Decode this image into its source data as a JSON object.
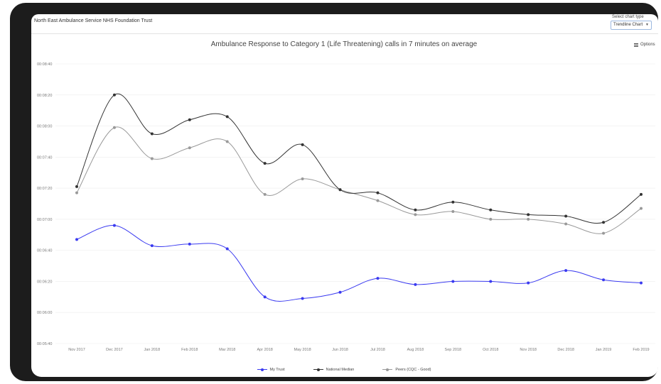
{
  "header": {
    "trust_name": "North East Ambulance Service NHS Foundation Trust",
    "chart_type_label": "Select chart type",
    "chart_type_selected": "Trendline Chart",
    "options_label": "Options"
  },
  "colors": {
    "my_trust": "#3a3af0",
    "national_median": "#333333",
    "peers": "#999999",
    "grid": "#eeeeee"
  },
  "chart_data": {
    "type": "line",
    "title": "Ambulance Response to Category 1 (Life Threatening) calls in 7 minutes on average",
    "ylabel": "",
    "xlabel": "",
    "categories": [
      "Nov 2017",
      "Dec 2017",
      "Jan 2018",
      "Feb 2018",
      "Mar 2018",
      "Apr 2018",
      "May 2018",
      "Jun 2018",
      "Jul 2018",
      "Aug 2018",
      "Sep 2018",
      "Oct 2018",
      "Nov 2018",
      "Dec 2018",
      "Jan 2019",
      "Feb 2019"
    ],
    "y_ticks": [
      "00:05:40",
      "00:06:00",
      "00:06:20",
      "00:06:40",
      "00:07:00",
      "00:07:20",
      "00:07:40",
      "00:08:00",
      "00:08:20",
      "00:08:40"
    ],
    "y_tick_seconds": [
      340,
      360,
      380,
      400,
      420,
      440,
      460,
      480,
      500,
      520
    ],
    "ylim_seconds": [
      340,
      520
    ],
    "series": [
      {
        "name": "My Trust",
        "color_key": "my_trust",
        "values": [
          407,
          416,
          403,
          404,
          401,
          370,
          369,
          373,
          382,
          378,
          380,
          380,
          379,
          387,
          381,
          379
        ]
      },
      {
        "name": "National Median",
        "color_key": "national_median",
        "values": [
          441,
          500,
          475,
          484,
          486,
          456,
          468,
          439,
          437,
          426,
          431,
          426,
          423,
          422,
          418,
          436
        ]
      },
      {
        "name": "Peers (CQC - Good)",
        "color_key": "peers",
        "values": [
          437,
          479,
          459,
          466,
          470,
          436,
          446,
          439,
          432,
          423,
          425,
          420,
          420,
          417,
          411,
          427
        ]
      }
    ]
  }
}
